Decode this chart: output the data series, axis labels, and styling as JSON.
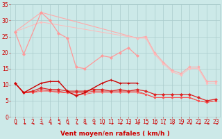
{
  "background_color": "#cce9e8",
  "grid_color": "#aacccc",
  "xlabel": "Vent moyen/en rafales ( km/h )",
  "xlabel_color": "#cc0000",
  "xlabel_fontsize": 6.5,
  "tick_color": "#cc0000",
  "tick_fontsize": 5.5,
  "xlim": [
    -0.5,
    23.5
  ],
  "ylim": [
    0,
    35
  ],
  "yticks": [
    0,
    5,
    10,
    15,
    20,
    25,
    30,
    35
  ],
  "xticks": [
    0,
    1,
    2,
    3,
    4,
    5,
    6,
    7,
    8,
    9,
    10,
    11,
    12,
    13,
    14,
    15,
    16,
    17,
    18,
    19,
    20,
    21,
    22,
    23
  ],
  "lines_pink": [
    {
      "x": [
        0,
        1,
        3,
        4,
        5,
        6,
        7,
        8,
        10,
        11,
        12,
        13,
        14
      ],
      "y": [
        26.5,
        19.5,
        32.5,
        30,
        26,
        24.5,
        15.5,
        15,
        19,
        18.5,
        20,
        21.5,
        19
      ],
      "color": "#ff9999",
      "marker": "D",
      "markersize": 2.0,
      "linewidth": 0.9,
      "zorder": 3
    },
    {
      "x": [
        0,
        3,
        14,
        15,
        16,
        17,
        18,
        19,
        20,
        21,
        22,
        23
      ],
      "y": [
        26.5,
        32.5,
        24.5,
        25,
        20,
        17,
        14.5,
        13.5,
        15.5,
        15.5,
        11,
        11
      ],
      "color": "#ffaaaa",
      "marker": "D",
      "markersize": 1.8,
      "linewidth": 0.8,
      "zorder": 2
    },
    {
      "x": [
        0,
        3,
        14,
        15,
        16,
        17,
        18,
        19,
        20,
        21,
        22,
        23
      ],
      "y": [
        26.5,
        29.5,
        24.5,
        24.5,
        19.5,
        16.5,
        14,
        13,
        15,
        15,
        10.5,
        10.5
      ],
      "color": "#ffbbbb",
      "marker": "D",
      "markersize": 1.5,
      "linewidth": 0.7,
      "zorder": 2
    }
  ],
  "lines_red": [
    {
      "x": [
        0,
        1,
        3,
        4,
        5,
        6,
        7,
        8,
        10,
        11,
        12,
        13,
        14
      ],
      "y": [
        10.5,
        7.5,
        10.5,
        11,
        11,
        8,
        6.5,
        7.5,
        10.5,
        11.5,
        10.5,
        10.5,
        10.5
      ],
      "color": "#cc0000",
      "marker": "+",
      "markersize": 3.5,
      "linewidth": 1.0,
      "zorder": 5
    },
    {
      "x": [
        0,
        1,
        2,
        3,
        4,
        5,
        6,
        7,
        8,
        9,
        10,
        11,
        12,
        13,
        14,
        15,
        16,
        17,
        18,
        19,
        20,
        21,
        22,
        23
      ],
      "y": [
        10.5,
        7.5,
        8.0,
        9.0,
        8.5,
        8.5,
        8.0,
        8.0,
        8.0,
        8.5,
        8.5,
        8.0,
        8.5,
        8.0,
        8.5,
        8.0,
        7.0,
        7.0,
        7.0,
        7.0,
        7.0,
        6.0,
        5.0,
        5.5
      ],
      "color": "#dd2222",
      "marker": "D",
      "markersize": 2.0,
      "linewidth": 0.9,
      "zorder": 4
    },
    {
      "x": [
        0,
        1,
        2,
        3,
        4,
        5,
        6,
        7,
        8,
        9,
        10,
        11,
        12,
        13,
        14,
        15,
        16,
        17,
        18,
        19,
        20,
        21,
        22,
        23
      ],
      "y": [
        10.5,
        7.5,
        7.5,
        8.5,
        8.0,
        8.0,
        7.5,
        7.5,
        7.5,
        8.0,
        8.0,
        8.0,
        8.0,
        8.0,
        8.0,
        7.0,
        6.0,
        6.0,
        6.0,
        6.0,
        6.0,
        5.0,
        4.5,
        5.0
      ],
      "color": "#ee3333",
      "marker": "D",
      "markersize": 1.5,
      "linewidth": 0.7,
      "zorder": 3
    },
    {
      "x": [
        0,
        1,
        2,
        3,
        4,
        5,
        6,
        7,
        8,
        9,
        10,
        11,
        12,
        13,
        14,
        15,
        16,
        17,
        18,
        19,
        20,
        21,
        22,
        23
      ],
      "y": [
        10.5,
        7.5,
        7.5,
        8.0,
        8.0,
        7.5,
        7.5,
        7.0,
        7.0,
        7.5,
        7.5,
        7.5,
        7.5,
        7.5,
        7.5,
        7.0,
        6.0,
        6.0,
        6.0,
        6.0,
        6.0,
        5.0,
        4.5,
        5.0
      ],
      "color": "#ff5555",
      "marker": "D",
      "markersize": 1.2,
      "linewidth": 0.6,
      "zorder": 3
    }
  ],
  "arrow_color": "#cc0000"
}
